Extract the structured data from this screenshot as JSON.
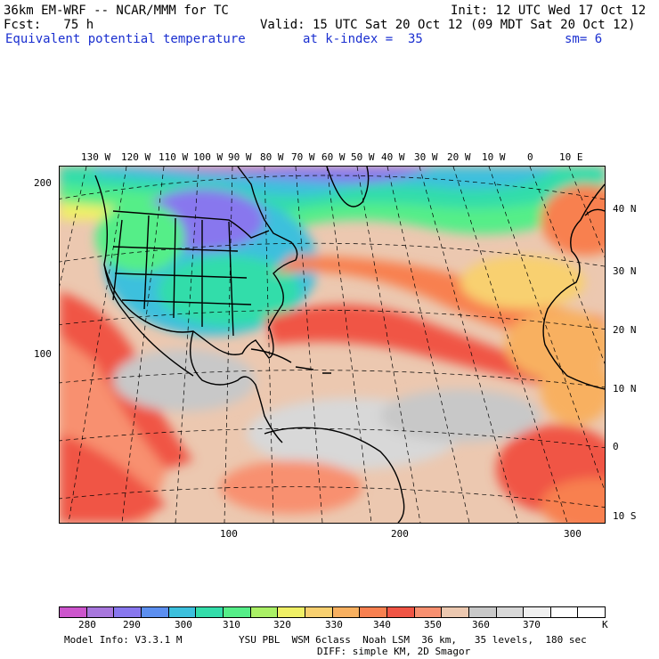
{
  "header": {
    "model_title": "36km EM-WRF -- NCAR/MMM for TC",
    "init": "Init: 12 UTC Wed 17 Oct 12",
    "forecast": "Fcst:   75 h",
    "valid": "Valid: 15 UTC Sat 20 Oct 12 (09 MDT Sat 20 Oct 12)",
    "field": "Equivalent potential temperature",
    "level": "at k-index =  35",
    "smoothing": "sm= 6"
  },
  "map": {
    "top_lon_labels": [
      "130 W",
      "120 W",
      "110 W",
      "100 W",
      "90 W",
      "80 W",
      "70 W",
      "60 W",
      "50 W",
      "40 W",
      "30 W",
      "20 W",
      "10 W",
      "0",
      "10 E"
    ],
    "right_lat_labels": [
      "40 N",
      "30 N",
      "20 N",
      "10 N",
      "0",
      "10 S"
    ],
    "left_grid_labels": [
      "200",
      "100"
    ],
    "bottom_grid_labels": [
      "100",
      "200",
      "300"
    ]
  },
  "colorbar": {
    "colors": [
      "#cc55cc",
      "#a877dd",
      "#8877ee",
      "#5c8ff0",
      "#3cc0dd",
      "#33ddaa",
      "#55ee88",
      "#aaf066",
      "#f0f066",
      "#f8d070",
      "#f8b060",
      "#f88050",
      "#f05545",
      "#f89070",
      "#ecc8b0",
      "#c8c8c8",
      "#d8d8d8",
      "#f0f0f0",
      "#ffffff",
      "#ffffff"
    ],
    "labels": [
      "280",
      "290",
      "300",
      "310",
      "320",
      "330",
      "340",
      "350",
      "360",
      "370",
      "K"
    ]
  },
  "footer": {
    "model_info": "Model Info: V3.3.1 M",
    "physics": "YSU PBL  WSM 6class  Noah LSM  36 km,   35 levels,  180 sec",
    "diffusion": "DIFF: simple KM, 2D Smagor"
  }
}
